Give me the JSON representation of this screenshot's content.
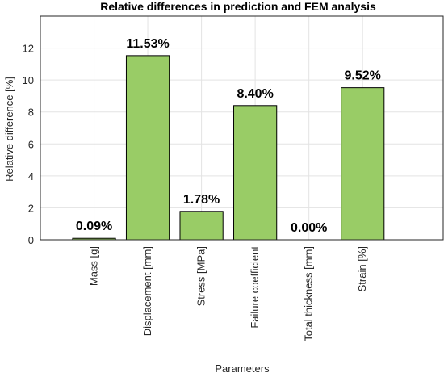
{
  "chart_data": {
    "type": "bar",
    "title": "Relative differences in prediction and FEM analysis",
    "x_label": "Parameters",
    "y_label": "Relative difference [%]",
    "categories": [
      "Mass [g]",
      "Displacement [mm]",
      "Stress [MPa]",
      "Failure coefficient",
      "Total thickness [mm]",
      "Strain [%]"
    ],
    "values": [
      0.09,
      11.53,
      1.78,
      8.4,
      0.0,
      9.52
    ],
    "value_labels": [
      "0.09%",
      "11.53%",
      "1.78%",
      "8.40%",
      "0.00%",
      "9.52%"
    ],
    "color": "#99cc66",
    "ylim": [
      0,
      14
    ],
    "yticks": [
      0,
      2,
      4,
      6,
      8,
      10,
      12
    ],
    "grid": true
  }
}
